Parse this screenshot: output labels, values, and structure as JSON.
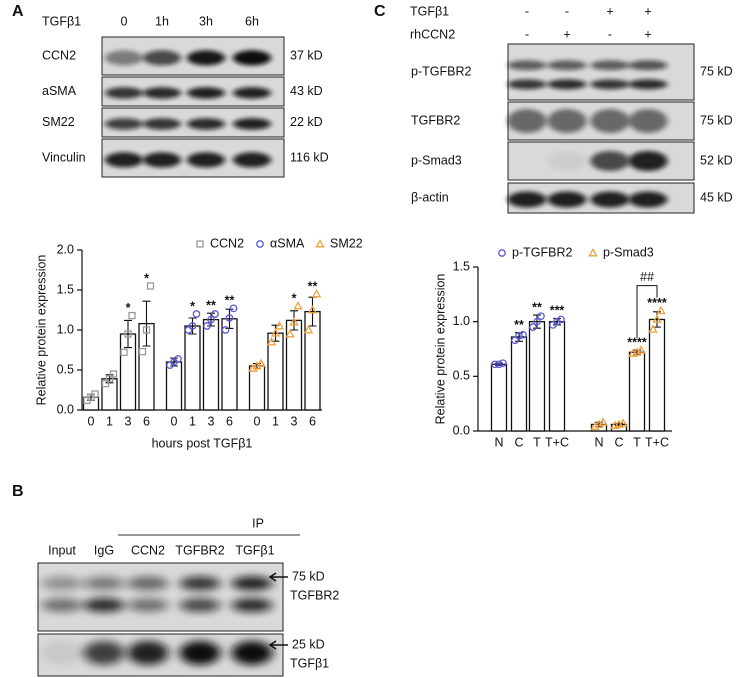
{
  "panels": {
    "A": {
      "label": "A",
      "treatment": "TGFβ1",
      "lanes": [
        "0",
        "1h",
        "3h",
        "6h"
      ],
      "rows": [
        {
          "name": "CCN2",
          "size": "37 kD"
        },
        {
          "name": "aSMA",
          "size": "43 kD"
        },
        {
          "name": "SM22",
          "size": "22 kD"
        },
        {
          "name": "Vinculin",
          "size": "116 kD"
        }
      ]
    },
    "B": {
      "label": "B",
      "group": "IP",
      "lanes": [
        "Input",
        "IgG",
        "CCN2",
        "TGFBR2",
        "TGFβ1"
      ],
      "rows": [
        {
          "size": "75 kD",
          "name": "TGFBR2"
        },
        {
          "size": "25 kD",
          "name": "TGFβ1"
        }
      ]
    },
    "C": {
      "label": "C",
      "treatments": [
        {
          "name": "TGFβ1",
          "signs": [
            "-",
            "-",
            "+",
            "+"
          ]
        },
        {
          "name": "rhCCN2",
          "signs": [
            "-",
            "+",
            "-",
            "+"
          ]
        }
      ],
      "rows": [
        {
          "name": "p-TGFBR2",
          "size": "75 kD"
        },
        {
          "name": "TGFBR2",
          "size": "75 kD"
        },
        {
          "name": "p-Smad3",
          "size": "52 kD"
        },
        {
          "name": "β-actin",
          "size": "45 kD"
        }
      ]
    }
  },
  "chart_data": [
    {
      "type": "bar",
      "ylabel": "Relative protein expression",
      "xlabel": "hours post TGFβ1",
      "categories": [
        "0",
        "1",
        "3",
        "6"
      ],
      "ylim": [
        0,
        2
      ],
      "yticks": [
        {
          "value": 0,
          "label": "0.0"
        },
        0.5,
        {
          "value": 1,
          "label": "1.0"
        },
        1.5,
        {
          "value": 2,
          "label": "2.0"
        }
      ],
      "series": [
        {
          "name": "CCN2",
          "color": "#9a9a9a",
          "marker": "square",
          "values": [
            0.16,
            0.39,
            0.95,
            1.08
          ],
          "errors": [
            0.04,
            0.05,
            0.17,
            0.28
          ],
          "points": [
            [
              0.12,
              0.16,
              0.2
            ],
            [
              0.33,
              0.39,
              0.45
            ],
            [
              0.72,
              0.95,
              1.18
            ],
            [
              0.73,
              1.0,
              1.55
            ]
          ],
          "annotations": [
            null,
            null,
            "*",
            "*"
          ]
        },
        {
          "name": "αSMA",
          "color": "#5b5bd6",
          "marker": "circle",
          "values": [
            0.6,
            1.05,
            1.13,
            1.14
          ],
          "errors": [
            0.05,
            0.1,
            0.08,
            0.12
          ],
          "points": [
            [
              0.56,
              0.6,
              0.64
            ],
            [
              1.0,
              1.05,
              1.2
            ],
            [
              1.05,
              1.13,
              1.2
            ],
            [
              1.0,
              1.15,
              1.27
            ]
          ],
          "annotations": [
            null,
            "*",
            "**",
            "**"
          ]
        },
        {
          "name": "SM22",
          "color": "#f0a040",
          "marker": "triangle",
          "values": [
            0.55,
            0.96,
            1.12,
            1.23
          ],
          "errors": [
            0.03,
            0.1,
            0.12,
            0.18
          ],
          "points": [
            [
              0.52,
              0.55,
              0.58
            ],
            [
              0.85,
              0.96,
              1.05
            ],
            [
              0.95,
              1.1,
              1.3
            ],
            [
              1.0,
              1.25,
              1.45
            ]
          ],
          "annotations": [
            null,
            null,
            "*",
            "**"
          ]
        }
      ]
    },
    {
      "type": "bar",
      "ylabel": "Relative protein expression",
      "categories": [
        "N",
        "C",
        "T",
        "T+C"
      ],
      "ylim": [
        0,
        1.5
      ],
      "yticks": [
        {
          "value": 0,
          "label": "0.0"
        },
        0.5,
        {
          "value": 1,
          "label": "1.0"
        },
        1.5
      ],
      "bracket_label": "##",
      "series": [
        {
          "name": "p-TGFBR2",
          "color": "#5b5bd6",
          "marker": "circle",
          "values": [
            0.61,
            0.86,
            1.0,
            1.0
          ],
          "errors": [
            0.01,
            0.04,
            0.06,
            0.03
          ],
          "points": [
            [
              0.61,
              0.61,
              0.62
            ],
            [
              0.83,
              0.87,
              0.88
            ],
            [
              0.95,
              1.0,
              1.05
            ],
            [
              0.97,
              1.0,
              1.02
            ]
          ],
          "annotations": [
            null,
            "**",
            "**",
            "***"
          ]
        },
        {
          "name": "p-Smad3",
          "color": "#f0a040",
          "marker": "triangle",
          "values": [
            0.06,
            0.06,
            0.72,
            1.02
          ],
          "errors": [
            0.02,
            0.01,
            0.02,
            0.07
          ],
          "points": [
            [
              0.04,
              0.06,
              0.08
            ],
            [
              0.05,
              0.06,
              0.07
            ],
            [
              0.71,
              0.72,
              0.74
            ],
            [
              0.93,
              1.02,
              1.1
            ]
          ],
          "annotations": [
            null,
            null,
            "****",
            "****"
          ]
        }
      ]
    }
  ]
}
